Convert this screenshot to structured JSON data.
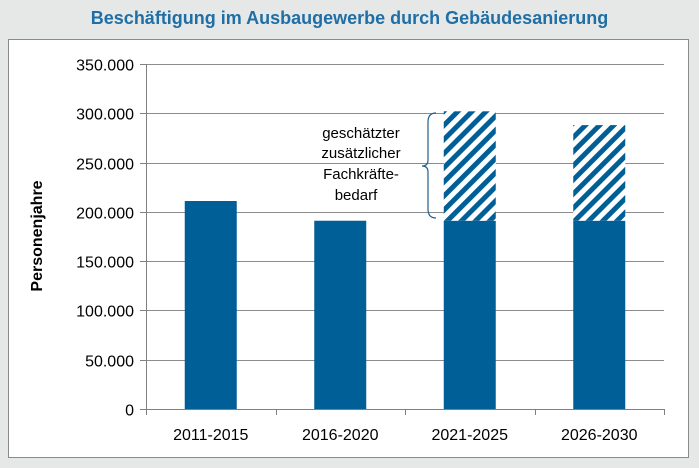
{
  "chart_data": {
    "type": "bar",
    "title": "Beschäftigung im Ausbaugewerbe durch Gebäudesanierung",
    "ylabel": "Personenjahre",
    "xlabel": "",
    "categories": [
      "2011-2015",
      "2016-2020",
      "2021-2025",
      "2026-2030"
    ],
    "series": [
      {
        "values": [
          211000,
          191000,
          191000,
          191000
        ]
      },
      {
        "values": [
          0,
          0,
          111000,
          97000
        ]
      }
    ],
    "ylim": [
      0,
      350000
    ],
    "yticks": [
      0,
      50000,
      100000,
      150000,
      200000,
      250000,
      300000,
      350000
    ],
    "ytick_labels": [
      "0",
      "50.000",
      "100.000",
      "150.000",
      "200.000",
      "250.000",
      "300.000",
      "350.000"
    ],
    "annotation": [
      "geschätzter",
      "zusätzlicher",
      "Fachkräfte-",
      "bedarf"
    ],
    "grid": true,
    "colors": {
      "bar": "#005f96",
      "hatch": "#005f96",
      "title": "#1f6fa6",
      "grid": "#8c8c8c"
    }
  }
}
